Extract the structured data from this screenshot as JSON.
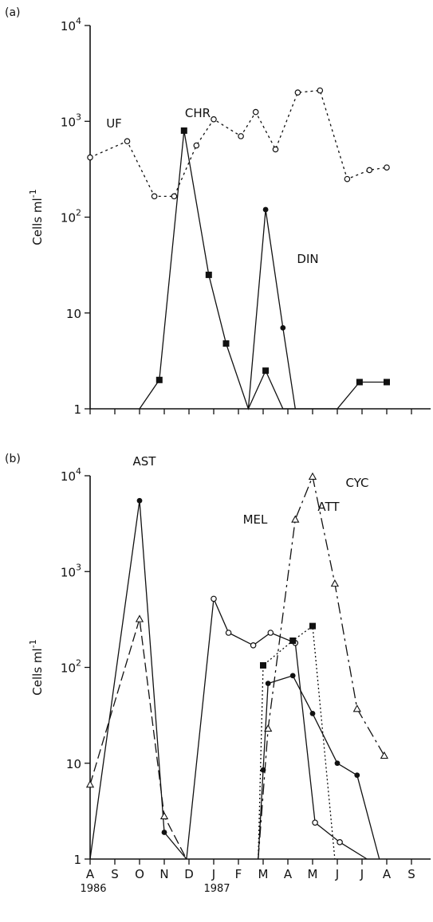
{
  "chart_data": [
    {
      "type": "line",
      "panel_label": "(a)",
      "ylabel": "Cells ml",
      "ylabel_superscript": "-1",
      "yscale": "log",
      "ylim": [
        1,
        10000
      ],
      "y_ticks": [
        {
          "value": 1,
          "label": "1"
        },
        {
          "value": 10,
          "label": "10"
        },
        {
          "value": 100,
          "label": "10",
          "exp": "2"
        },
        {
          "value": 1000,
          "label": "10",
          "exp": "3"
        },
        {
          "value": 10000,
          "label": "10",
          "exp": "4"
        }
      ],
      "x_month_index_range": [
        0,
        13
      ],
      "series": [
        {
          "name": "UF",
          "dash": "3,4",
          "marker": "open-circle",
          "x": [
            0,
            1.5,
            2.6,
            3.4,
            4.3,
            5.0,
            6.1,
            6.7,
            7.5,
            8.4,
            9.3,
            10.4,
            11.3,
            12.0
          ],
          "y": [
            420,
            620,
            165,
            165,
            560,
            1050,
            700,
            1250,
            510,
            2000,
            2100,
            250,
            310,
            330
          ]
        },
        {
          "name": "CHR",
          "dash": "",
          "marker": "filled-square",
          "x": [
            2.0,
            2.8,
            3.8,
            4.8,
            5.5,
            6.4,
            7.1,
            7.8,
            10.0,
            10.9,
            12.0
          ],
          "y": [
            1,
            2,
            800,
            25,
            4.8,
            1,
            2.5,
            1,
            1,
            1.9,
            1.9
          ]
        },
        {
          "name": "DIN",
          "dash": "",
          "marker": "filled-circle",
          "x": [
            6.4,
            7.1,
            7.8,
            8.3
          ],
          "y": [
            1,
            120,
            7,
            1
          ]
        }
      ]
    },
    {
      "type": "line",
      "panel_label": "(b)",
      "ylabel": "Cells ml",
      "ylabel_superscript": "-1",
      "yscale": "log",
      "ylim": [
        1,
        10000
      ],
      "y_ticks": [
        {
          "value": 1,
          "label": "1"
        },
        {
          "value": 10,
          "label": "10"
        },
        {
          "value": 100,
          "label": "10",
          "exp": "2"
        },
        {
          "value": 1000,
          "label": "10",
          "exp": "3"
        },
        {
          "value": 10000,
          "label": "10",
          "exp": "4"
        }
      ],
      "x_tick_labels": [
        "A",
        "S",
        "O",
        "N",
        "D",
        "J",
        "F",
        "M",
        "A",
        "M",
        "J",
        "J",
        "A",
        "S"
      ],
      "x_year_labels": [
        {
          "index": 0,
          "label": "1986"
        },
        {
          "index": 5,
          "label": "1987"
        }
      ],
      "x_month_index_range": [
        0,
        13
      ],
      "series": [
        {
          "name": "AST",
          "dash": "",
          "marker": "filled-circle",
          "x": [
            0,
            2.0,
            3.0,
            3.9
          ],
          "y": [
            1,
            5500,
            1.9,
            1
          ]
        },
        {
          "name": "",
          "dash": "12,5",
          "marker": "open-triangle",
          "x": [
            0,
            2.0,
            3.0,
            3.9
          ],
          "y": [
            6,
            320,
            2.8,
            1
          ]
        },
        {
          "name": "MEL",
          "dash": "",
          "marker": "open-circle",
          "x": [
            3.9,
            5.0,
            5.6,
            6.6,
            7.3,
            8.3,
            9.1,
            10.1,
            11.2
          ],
          "y": [
            1,
            520,
            230,
            170,
            230,
            180,
            2.4,
            1.5,
            1
          ]
        },
        {
          "name": "ATT",
          "dash": "2,3",
          "marker": "filled-square",
          "x": [
            6.8,
            7.0,
            8.2,
            9.0,
            9.9
          ],
          "y": [
            1,
            105,
            190,
            270,
            1
          ]
        },
        {
          "name": "",
          "dash": "",
          "marker": "filled-circle",
          "x": [
            6.8,
            7.0,
            7.2,
            8.2,
            9.0,
            10.0,
            10.8,
            11.7
          ],
          "y": [
            1,
            8.5,
            68,
            82,
            33,
            10,
            7.5,
            1
          ]
        },
        {
          "name": "CYC",
          "dash": "14,5,3,5",
          "marker": "open-triangle",
          "x": [
            6.8,
            7.2,
            8.3,
            9.0,
            9.9,
            10.8,
            11.9
          ],
          "y": [
            1,
            23,
            3500,
            9800,
            750,
            37,
            12
          ]
        }
      ]
    }
  ]
}
